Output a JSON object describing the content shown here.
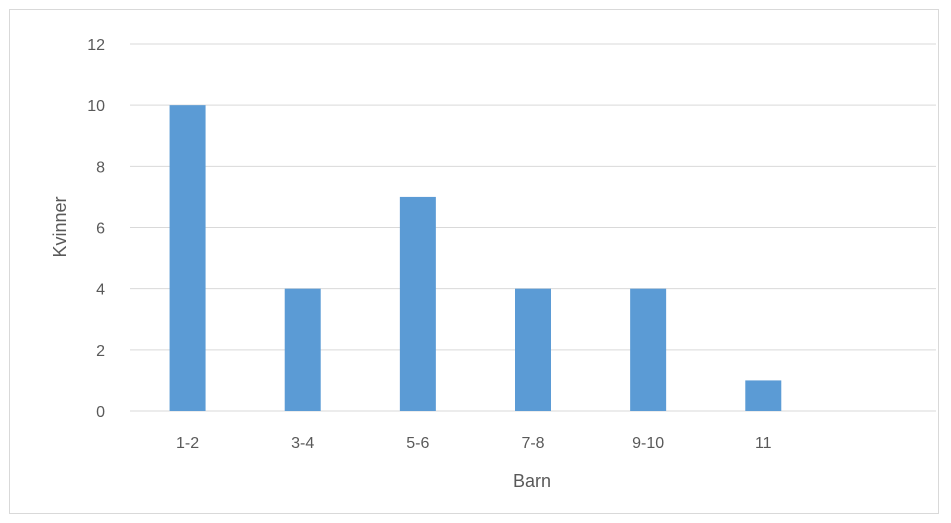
{
  "chart_data": {
    "type": "bar",
    "title": "",
    "xlabel": "Barn",
    "ylabel": "Kvinner",
    "categories": [
      "1-2",
      "3-4",
      "5-6",
      "7-8",
      "9-10",
      "11",
      ""
    ],
    "values": [
      10,
      4,
      7,
      4,
      4,
      1,
      null
    ],
    "ylim": [
      0,
      12
    ],
    "yticks": [
      "0",
      "2",
      "4",
      "6",
      "8",
      "10",
      "12"
    ],
    "grid": true,
    "legend": "none",
    "bar_color": "#5b9bd5",
    "grid_color": "#d9d9d9"
  }
}
